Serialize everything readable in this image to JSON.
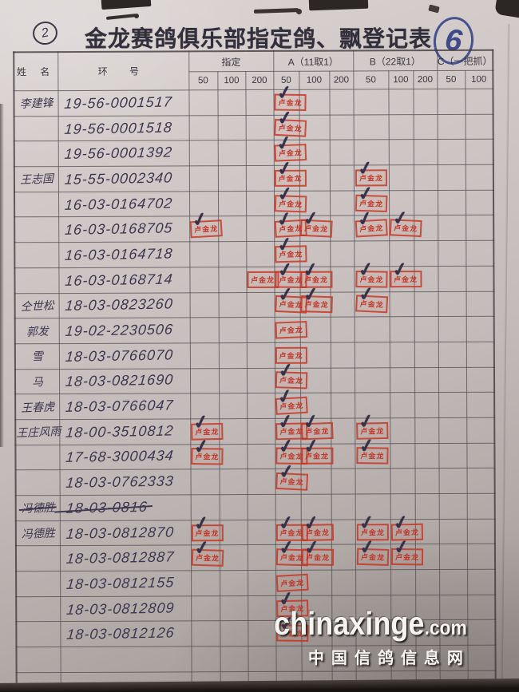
{
  "page_marks": {
    "top_left_circle": "2",
    "top_right_circle": "6"
  },
  "title": "金龙赛鸽俱乐部指定鸽、飘登记表",
  "watermark": {
    "site": "chinaxinge",
    "tld": ".com",
    "caption": "中国信鸽信息网"
  },
  "colors": {
    "stamp_red": "#c5372a",
    "ink": "#3a384e",
    "blue_pen": "#47538e",
    "paper": "#c9c1bf"
  },
  "table": {
    "headers": {
      "name": "姓 名",
      "ring": "环 号",
      "groups": [
        {
          "label": "指定",
          "cols": [
            "50",
            "100",
            "200"
          ]
        },
        {
          "label": "A（11取1）",
          "cols": [
            "50",
            "100",
            "200"
          ]
        },
        {
          "label": "B（22取1）",
          "cols": [
            "50",
            "100",
            "200"
          ]
        },
        {
          "label": "C（一把抓）",
          "cols": [
            "50",
            "100"
          ]
        }
      ]
    },
    "stamp_text": "卢金龙",
    "rows": [
      {
        "name": "李建锋",
        "ring": "19-56-0001517",
        "stamps": [
          {
            "col": "a50",
            "check": true
          }
        ]
      },
      {
        "name": "",
        "ring": "19-56-0001518",
        "stamps": [
          {
            "col": "a50",
            "check": true
          }
        ]
      },
      {
        "name": "",
        "ring": "19-56-0001392",
        "stamps": [
          {
            "col": "a50",
            "check": true
          }
        ]
      },
      {
        "name": "王志国",
        "ring": "15-55-0002340",
        "stamps": [
          {
            "col": "a50",
            "check": true
          },
          {
            "col": "b50",
            "check": true
          }
        ]
      },
      {
        "name": "",
        "ring": "16-03-0164702",
        "stamps": [
          {
            "col": "a50",
            "check": true
          },
          {
            "col": "b50",
            "check": true
          }
        ]
      },
      {
        "name": "",
        "ring": "16-03-0168705",
        "stamps": [
          {
            "col": "z50",
            "check": true
          },
          {
            "col": "a50",
            "check": true
          },
          {
            "col": "a100",
            "check": true
          },
          {
            "col": "b50",
            "check": true
          },
          {
            "col": "b100",
            "check": true
          }
        ]
      },
      {
        "name": "",
        "ring": "16-03-0164718",
        "stamps": [
          {
            "col": "a50",
            "check": true
          }
        ]
      },
      {
        "name": "",
        "ring": "16-03-0168714",
        "stamps": [
          {
            "col": "z200",
            "check": false
          },
          {
            "col": "a50",
            "check": true
          },
          {
            "col": "a100",
            "check": true
          },
          {
            "col": "b50",
            "check": true
          },
          {
            "col": "b100",
            "check": true
          }
        ]
      },
      {
        "name": "仝世松",
        "ring": "18-03-0823260",
        "stamps": [
          {
            "col": "a50",
            "check": true
          },
          {
            "col": "a100",
            "check": true
          },
          {
            "col": "b50",
            "check": true
          }
        ]
      },
      {
        "name": "郭发",
        "ring": "19-02-2230506",
        "stamps": [
          {
            "col": "a50",
            "check": false
          }
        ]
      },
      {
        "name": "雪",
        "ring": "18-03-0766070",
        "stamps": [
          {
            "col": "a50",
            "check": false
          }
        ]
      },
      {
        "name": "马",
        "ring": "18-03-0821690",
        "stamps": [
          {
            "col": "a50",
            "check": true
          }
        ]
      },
      {
        "name": "王春虎",
        "ring": "18-03-0766047",
        "stamps": [
          {
            "col": "a50",
            "check": true
          }
        ]
      },
      {
        "name": "王庄风雨",
        "ring": "18-00-3510812",
        "stamps": [
          {
            "col": "z50",
            "check": true
          },
          {
            "col": "a50",
            "check": true
          },
          {
            "col": "a100",
            "check": true
          },
          {
            "col": "b50",
            "check": true
          }
        ]
      },
      {
        "name": "",
        "ring": "17-68-3000434",
        "stamps": [
          {
            "col": "z50",
            "check": true
          },
          {
            "col": "a50",
            "check": true
          },
          {
            "col": "a100",
            "check": true
          },
          {
            "col": "b50",
            "check": true
          }
        ]
      },
      {
        "name": "",
        "ring": "18-03-0762333",
        "stamps": [
          {
            "col": "a50",
            "check": true
          }
        ]
      },
      {
        "name": "冯德胜",
        "ring": "18-03-0816",
        "struck": true,
        "stamps": []
      },
      {
        "name": "冯德胜",
        "ring": "18-03-0812870",
        "stamps": [
          {
            "col": "z50",
            "check": true
          },
          {
            "col": "a50",
            "check": true
          },
          {
            "col": "a100",
            "check": true
          },
          {
            "col": "b50",
            "check": true
          },
          {
            "col": "b100",
            "check": true
          }
        ]
      },
      {
        "name": "",
        "ring": "18-03-0812887",
        "stamps": [
          {
            "col": "z50",
            "check": true
          },
          {
            "col": "a50",
            "check": true
          },
          {
            "col": "a100",
            "check": true
          },
          {
            "col": "b50",
            "check": true
          },
          {
            "col": "b100",
            "check": true
          }
        ]
      },
      {
        "name": "",
        "ring": "18-03-0812155",
        "stamps": [
          {
            "col": "a50",
            "check": false
          }
        ]
      },
      {
        "name": "",
        "ring": "18-03-0812809",
        "stamps": [
          {
            "col": "a50",
            "check": true
          }
        ]
      },
      {
        "name": "",
        "ring": "18-03-0812126",
        "stamps": [
          {
            "col": "a50",
            "check": true
          }
        ]
      },
      {
        "name": "",
        "ring": "",
        "stamps": []
      },
      {
        "name": "",
        "ring": "",
        "stamps": []
      }
    ]
  }
}
